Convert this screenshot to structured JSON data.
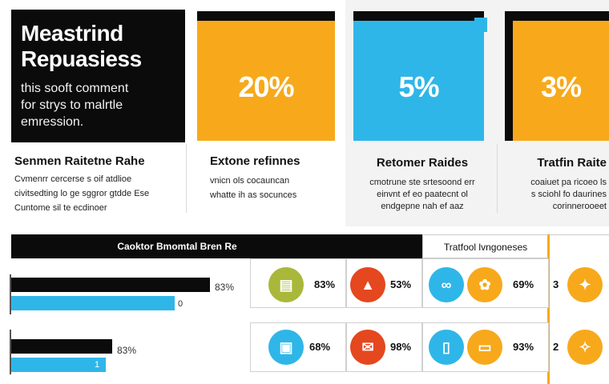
{
  "hero": {
    "title_line1": "Meastrind",
    "title_line2": "Repuasiess",
    "sub_line1": "this sooft comment",
    "sub_line2": "for strys to malrtle",
    "sub_line3": "emression."
  },
  "cards": [
    {
      "pct": "20%",
      "title": "Extone refinnes",
      "desc1": "vnicn ols cocauncan",
      "desc2": "whatte ih as socunces"
    },
    {
      "pct": "5%",
      "title": "Retomer Raides",
      "desc1": "cmotrune ste srtesoond err",
      "desc2": "einvnt ef eo paatecnt ol",
      "desc3": "endgepne nah ef aaz"
    },
    {
      "pct": "3%",
      "title": "Tratfin Raite",
      "desc1": "coaiuet pa ricoeo ls",
      "desc2": "s sciohl fo daurines",
      "desc3": "corinnerooeet"
    }
  ],
  "left_block": {
    "title": "Senmen Raitetne Rahe",
    "desc1": "Cvmenrr cercerse s oif atdlioe",
    "desc2": "civitsedting lo ge sggror gtdde Ese",
    "desc3": "Cuntome sil te ecdinoer"
  },
  "table": {
    "header_left": "Caoktor Bmomtal Bren Re",
    "header_right": "Tratfool lvngoneses",
    "bars": [
      {
        "label": "83%",
        "sub": "0",
        "black": 0.6,
        "blue": 0.5
      },
      {
        "label": "83%",
        "sub": "1",
        "black": 0.3,
        "blue": 0.28
      }
    ],
    "row1": [
      "83%",
      "53%",
      "69%",
      "3"
    ],
    "row2": [
      "68%",
      "98%",
      "93%",
      "2"
    ]
  },
  "colors": {
    "orange": "#f7a91b",
    "blue": "#2fb6e8",
    "red": "#e5471f",
    "olive": "#a9b83a",
    "black": "#0b0b0b"
  }
}
